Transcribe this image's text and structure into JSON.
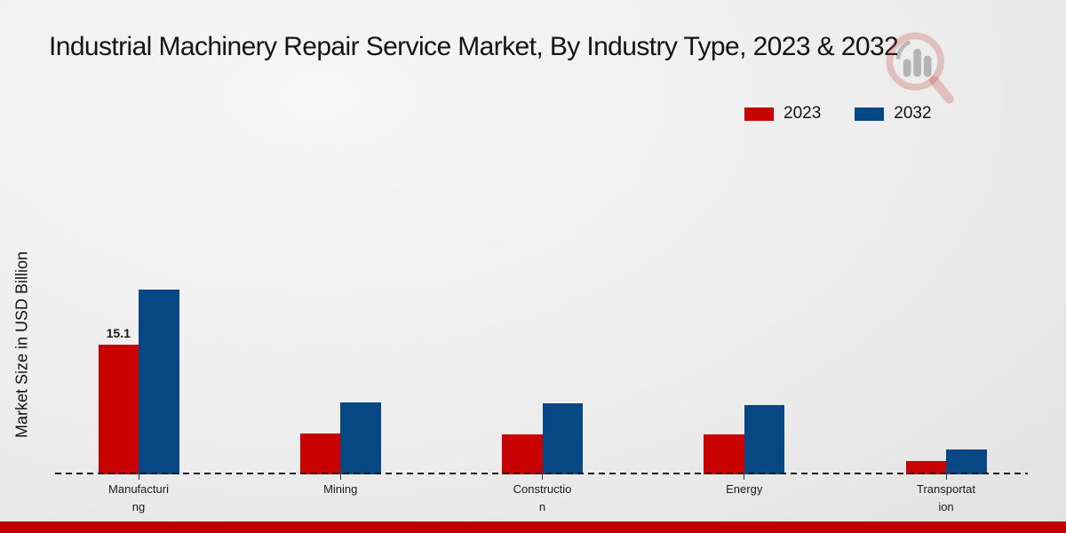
{
  "page": {
    "title": "Industrial Machinery Repair Service Market, By Industry Type, 2023 & 2032"
  },
  "legend": {
    "items": [
      {
        "label": "2023",
        "color": "#c80200"
      },
      {
        "label": "2032",
        "color": "#074884"
      }
    ]
  },
  "watermark_icon": "magnifier-bar-chart-logo",
  "footer": {
    "color": "#bf0001"
  },
  "chart_data": {
    "type": "bar",
    "title": "Industrial Machinery Repair Service Market, By Industry Type, 2023 & 2032",
    "xlabel": "",
    "ylabel": "Market Size in USD Billion",
    "categories": [
      "Manufacturing",
      "Mining",
      "Construction",
      "Energy",
      "Transportation"
    ],
    "category_label_lines": [
      [
        "Manufacturi",
        "ng"
      ],
      [
        "Mining"
      ],
      [
        "Constructio",
        "n"
      ],
      [
        "Energy"
      ],
      [
        "Transportat",
        "ion"
      ]
    ],
    "series": [
      {
        "name": "2023",
        "color": "#c80200",
        "values": [
          15.1,
          4.7,
          4.6,
          4.6,
          1.5
        ]
      },
      {
        "name": "2032",
        "color": "#074884",
        "values": [
          21.4,
          8.4,
          8.2,
          8.0,
          2.9
        ]
      }
    ],
    "bar_labels": [
      [
        "15.1",
        "",
        "",
        "",
        ""
      ],
      [
        "",
        "",
        "",
        "",
        ""
      ]
    ],
    "ylim": [
      0,
      23
    ],
    "grid": false,
    "legend_position": "top-right",
    "baseline_style": "dashed"
  }
}
